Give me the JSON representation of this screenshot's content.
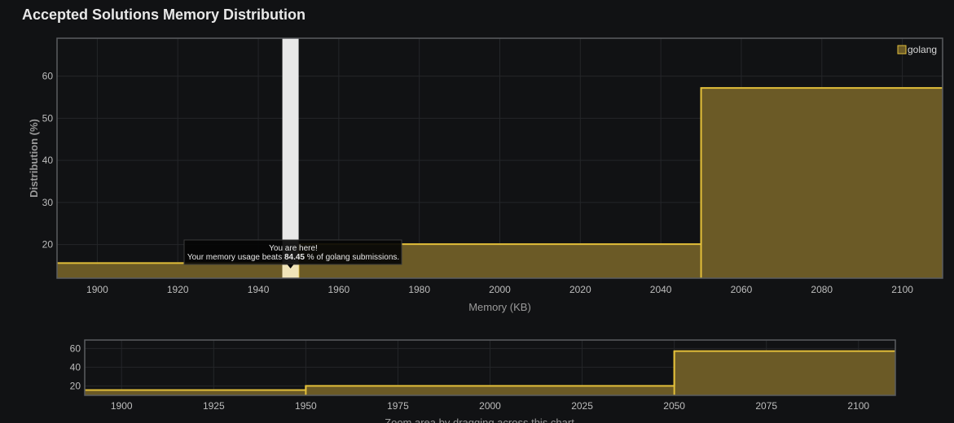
{
  "page": {
    "title": "Accepted Solutions Memory Distribution"
  },
  "tooltip": {
    "line1": "You are here!",
    "line2_prefix": "Your memory usage beats ",
    "line2_value": "84.45",
    "line2_suffix": " % of golang submissions."
  },
  "colors": {
    "series_fill": "#6b5a26",
    "series_line": "#e2bf3a",
    "marker": "#e8e8e8",
    "background": "#111214"
  },
  "chart_data": [
    {
      "type": "area",
      "step": true,
      "series": [
        {
          "name": "golang",
          "points": [
            [
              1890,
              15.6
            ],
            [
              1950,
              15.6
            ],
            [
              1950,
              20.1
            ],
            [
              2050,
              20.1
            ],
            [
              2050,
              57.2
            ],
            [
              2110,
              57.2
            ]
          ]
        }
      ],
      "marker_x": 1948,
      "xlabel": "Memory (KB)",
      "ylabel": "Distribution (%)",
      "xlim": [
        1890,
        2110
      ],
      "ylim": [
        12,
        69
      ],
      "xticks": [
        1900,
        1920,
        1940,
        1960,
        1980,
        2000,
        2020,
        2040,
        2060,
        2080,
        2100
      ],
      "yticks": [
        20,
        30,
        40,
        50,
        60
      ],
      "grid": true,
      "legend": "top-right"
    },
    {
      "type": "area",
      "step": true,
      "series": [
        {
          "name": "golang",
          "points": [
            [
              1890,
              15.6
            ],
            [
              1950,
              15.6
            ],
            [
              1950,
              20.1
            ],
            [
              2050,
              20.1
            ],
            [
              2050,
              57.2
            ],
            [
              2110,
              57.2
            ]
          ]
        }
      ],
      "xlim": [
        1890,
        2110
      ],
      "ylim": [
        10,
        69
      ],
      "xticks": [
        1900,
        1925,
        1950,
        1975,
        2000,
        2025,
        2050,
        2075,
        2100
      ],
      "yticks": [
        20,
        40,
        60
      ],
      "grid": true,
      "caption": "Zoom area by dragging across this chart"
    }
  ]
}
